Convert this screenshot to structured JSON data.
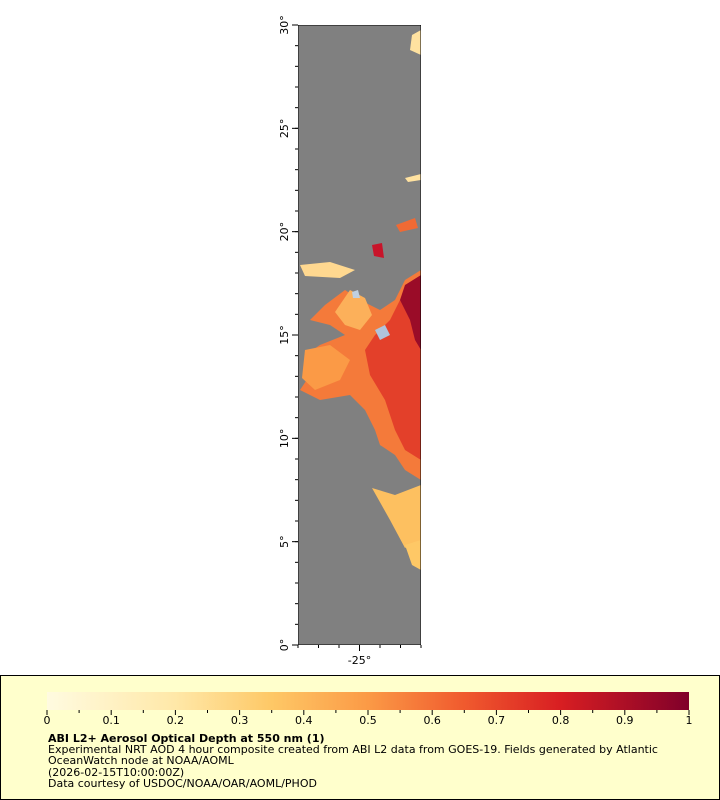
{
  "map": {
    "xlim": [
      -28,
      -22
    ],
    "ylim": [
      0,
      30
    ],
    "xticks": [
      {
        "value": -25,
        "label": "-25°"
      }
    ],
    "yticks": [
      {
        "value": 0,
        "label": "0°"
      },
      {
        "value": 5,
        "label": "5°"
      },
      {
        "value": 10,
        "label": "10°"
      },
      {
        "value": 15,
        "label": "15°"
      },
      {
        "value": 20,
        "label": "20°"
      },
      {
        "value": 25,
        "label": "25°"
      },
      {
        "value": 30,
        "label": "30°"
      }
    ]
  },
  "legend": {
    "range": [
      0,
      1
    ],
    "ticks": [
      0,
      0.1,
      0.2,
      0.3,
      0.4,
      0.5,
      0.6,
      0.7,
      0.8,
      0.9,
      1
    ],
    "title": "ABI L2+ Aerosol Optical Depth at 550 nm (1)",
    "lines": [
      "Experimental NRT AOD 4 hour composite created from ABI L2 data from GOES-19. Fields generated by Atlantic",
      "OceanWatch node at NOAA/AOML",
      "(2026-02-15T10:00:00Z)",
      "Data courtesy of USDOC/NOAA/OAR/AOML/PHOD"
    ]
  }
}
